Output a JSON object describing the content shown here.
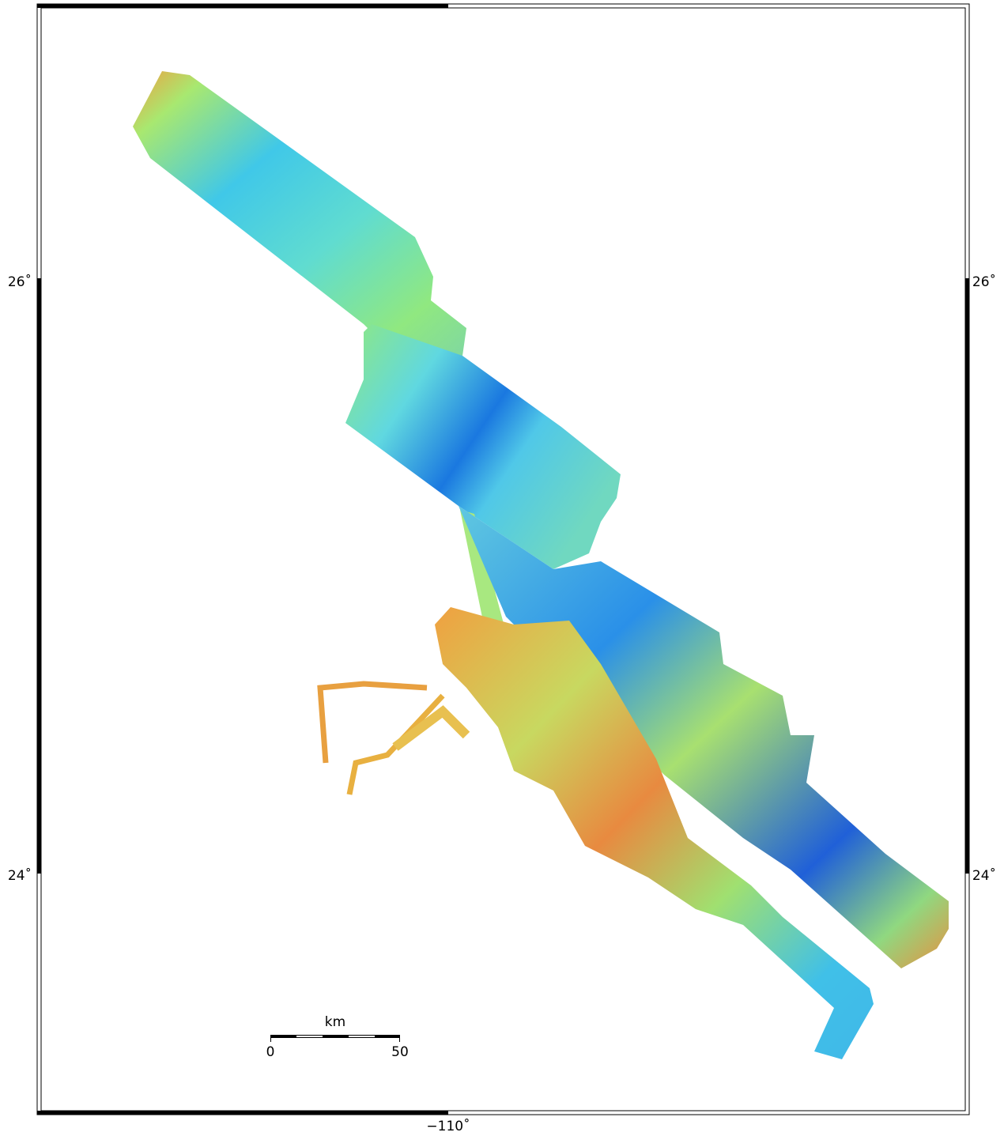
{
  "map": {
    "lat_labels": [
      "26˚",
      "24˚"
    ],
    "lon_labels": [
      "−110˚"
    ],
    "scale_bar": {
      "unit": "km",
      "ticks": [
        "0",
        "50"
      ]
    }
  }
}
